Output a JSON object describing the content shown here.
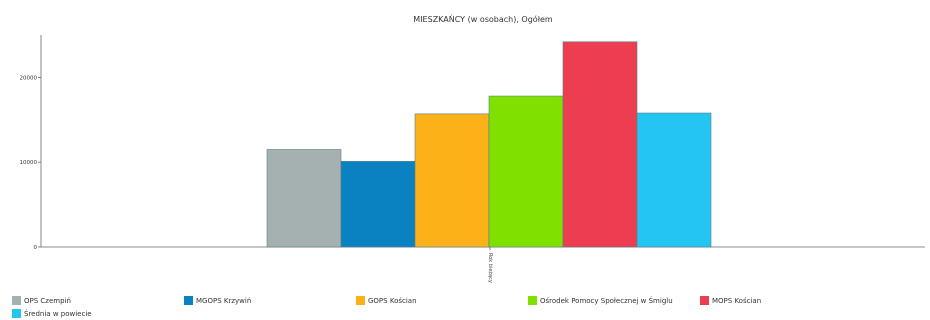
{
  "chart_data": {
    "type": "bar",
    "title": "MIESZKAŃCY (w osobach), Ogółem",
    "categories": [
      "Rok Bieżący"
    ],
    "category_label_display": "Rok bieżący",
    "ylim": [
      0,
      25000
    ],
    "yticks": [
      0,
      10000,
      20000
    ],
    "grid": false,
    "legend_position": "bottom",
    "series": [
      {
        "name": "OPS Czempiń",
        "values": [
          11500
        ],
        "color": "#a5b1b1"
      },
      {
        "name": "MGOPS Krzywiń",
        "values": [
          10100
        ],
        "color": "#0a82c2"
      },
      {
        "name": "GOPS Kościan",
        "values": [
          15700
        ],
        "color": "#fbb117"
      },
      {
        "name": "Ośrodek Pomocy Społecznej w Śmiglu",
        "values": [
          17800
        ],
        "color": "#80e000"
      },
      {
        "name": "MOPS Kościan",
        "values": [
          24200
        ],
        "color": "#ec3e50"
      },
      {
        "name": "Średnia w powiecie",
        "values": [
          15800
        ],
        "color": "#25c5f2"
      }
    ]
  }
}
